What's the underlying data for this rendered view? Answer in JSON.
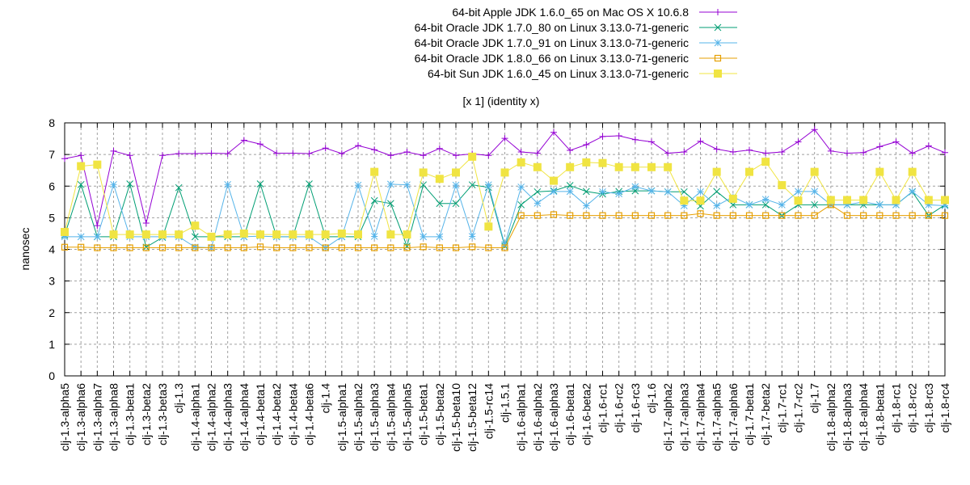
{
  "chart_data": {
    "type": "line",
    "title": "[x 1] (identity x)",
    "xlabel": "",
    "ylabel": "nanosec",
    "ylim": [
      0,
      8
    ],
    "yticks": [
      0,
      1,
      2,
      3,
      4,
      5,
      6,
      7,
      8
    ],
    "grid": true,
    "legend_position": "top-right",
    "categories": [
      "clj-1.3-alpha5",
      "clj-1.3-alpha6",
      "clj-1.3-alpha7",
      "clj-1.3-alpha8",
      "clj-1.3-beta1",
      "clj-1.3-beta2",
      "clj-1.3-beta3",
      "clj-1.3",
      "clj-1.4-alpha1",
      "clj-1.4-alpha2",
      "clj-1.4-alpha3",
      "clj-1.4-alpha4",
      "clj-1.4-beta1",
      "clj-1.4-beta2",
      "clj-1.4-beta4",
      "clj-1.4-beta6",
      "clj-1.4",
      "clj-1.5-alpha1",
      "clj-1.5-alpha2",
      "clj-1.5-alpha3",
      "clj-1.5-alpha4",
      "clj-1.5-alpha5",
      "clj-1.5-beta1",
      "clj-1.5-beta2",
      "clj-1.5-beta10",
      "clj-1.5-beta12",
      "clj-1.5-rc14",
      "clj-1.5.1",
      "clj-1.6-alpha1",
      "clj-1.6-alpha2",
      "clj-1.6-alpha3",
      "clj-1.6-beta1",
      "clj-1.6-beta2",
      "clj-1.6-rc1",
      "clj-1.6-rc2",
      "clj-1.6-rc3",
      "clj-1.6",
      "clj-1.7-alpha2",
      "clj-1.7-alpha3",
      "clj-1.7-alpha4",
      "clj-1.7-alpha5",
      "clj-1.7-alpha6",
      "clj-1.7-beta1",
      "clj-1.7-beta2",
      "clj-1.7-rc1",
      "clj-1.7-rc2",
      "clj-1.7",
      "clj-1.8-alpha2",
      "clj-1.8-alpha3",
      "clj-1.8-alpha4",
      "clj-1.8-beta1",
      "clj-1.8-rc1",
      "clj-1.8-rc2",
      "clj-1.8-rc3",
      "clj-1.8-rc4"
    ],
    "series": [
      {
        "name": "64-bit Apple JDK 1.6.0_65 on Mac OS X 10.6.8",
        "color": "#9400d3",
        "marker": "plus",
        "values": [
          6.87,
          6.97,
          4.75,
          7.11,
          6.97,
          4.83,
          6.97,
          7.03,
          7.03,
          7.04,
          7.03,
          7.45,
          7.33,
          7.04,
          7.04,
          7.03,
          7.2,
          7.03,
          7.28,
          7.15,
          6.97,
          7.08,
          6.97,
          7.19,
          6.97,
          7.02,
          6.97,
          7.51,
          7.08,
          7.04,
          7.7,
          7.13,
          7.31,
          7.57,
          7.59,
          7.47,
          7.4,
          7.04,
          7.08,
          7.42,
          7.17,
          7.08,
          7.14,
          7.04,
          7.08,
          7.4,
          7.79,
          7.11,
          7.04,
          7.06,
          7.25,
          7.4,
          7.04,
          7.27,
          7.06
        ]
      },
      {
        "name": "64-bit Oracle JDK 1.7.0_80 on Linux 3.13.0-71-generic",
        "color": "#009e73",
        "marker": "cross",
        "values": [
          4.45,
          6.05,
          4.4,
          4.4,
          6.07,
          4.07,
          4.38,
          5.95,
          4.4,
          4.4,
          4.4,
          4.4,
          6.07,
          4.4,
          4.4,
          6.07,
          4.4,
          4.4,
          4.4,
          5.54,
          5.45,
          4.1,
          6.04,
          5.45,
          5.45,
          6.04,
          5.96,
          4.1,
          5.41,
          5.82,
          5.85,
          6.02,
          5.83,
          5.75,
          5.83,
          5.85,
          5.85,
          5.82,
          5.82,
          5.37,
          5.83,
          5.41,
          5.41,
          5.41,
          5.07,
          5.41,
          5.41,
          5.41,
          5.41,
          5.41,
          5.41,
          5.41,
          5.82,
          5.07,
          5.41
        ]
      },
      {
        "name": "64-bit Oracle JDK 1.7.0_91 on Linux 3.13.0-71-generic",
        "color": "#56b4e9",
        "marker": "star",
        "values": [
          4.4,
          4.4,
          4.4,
          6.05,
          4.4,
          4.4,
          4.4,
          4.4,
          4.07,
          4.05,
          6.05,
          4.4,
          4.42,
          4.4,
          4.4,
          4.4,
          4.05,
          4.4,
          6.03,
          4.41,
          6.06,
          6.04,
          4.4,
          4.4,
          6.03,
          4.41,
          6.04,
          4.15,
          5.97,
          5.46,
          5.83,
          5.83,
          5.38,
          5.82,
          5.76,
          5.98,
          5.85,
          5.82,
          5.38,
          5.82,
          5.38,
          5.66,
          5.41,
          5.58,
          5.41,
          5.83,
          5.83,
          5.41,
          5.41,
          5.5,
          5.41,
          5.41,
          5.83,
          5.41,
          5.38
        ]
      },
      {
        "name": "64-bit Oracle JDK 1.8.0_66 on Linux 3.13.0-71-generic",
        "color": "#e69f00",
        "marker": "open-square",
        "values": [
          4.07,
          4.07,
          4.05,
          4.05,
          4.05,
          4.05,
          4.05,
          4.05,
          4.05,
          4.05,
          4.05,
          4.05,
          4.08,
          4.05,
          4.05,
          4.05,
          4.05,
          4.05,
          4.05,
          4.05,
          4.05,
          4.05,
          4.08,
          4.05,
          4.05,
          4.08,
          4.05,
          4.05,
          5.07,
          5.07,
          5.1,
          5.07,
          5.07,
          5.07,
          5.07,
          5.07,
          5.07,
          5.07,
          5.07,
          5.13,
          5.07,
          5.07,
          5.07,
          5.07,
          5.07,
          5.07,
          5.07,
          5.41,
          5.07,
          5.07,
          5.07,
          5.07,
          5.07,
          5.07,
          5.07
        ]
      },
      {
        "name": "64-bit Sun JDK 1.6.0_45 on Linux 3.13.0-71-generic",
        "color": "#f0e442",
        "marker": "filled-square",
        "values": [
          4.55,
          6.63,
          6.68,
          4.47,
          4.47,
          4.47,
          4.47,
          4.47,
          4.75,
          4.4,
          4.47,
          4.5,
          4.47,
          4.47,
          4.47,
          4.47,
          4.47,
          4.5,
          4.47,
          6.45,
          4.47,
          4.47,
          6.43,
          6.23,
          6.43,
          6.93,
          4.72,
          6.43,
          6.75,
          6.6,
          6.17,
          6.6,
          6.75,
          6.73,
          6.6,
          6.6,
          6.6,
          6.6,
          5.54,
          5.54,
          6.45,
          5.6,
          6.45,
          6.77,
          6.03,
          5.54,
          6.45,
          5.56,
          5.56,
          5.56,
          6.45,
          5.56,
          6.45,
          5.56,
          5.56
        ]
      }
    ]
  }
}
